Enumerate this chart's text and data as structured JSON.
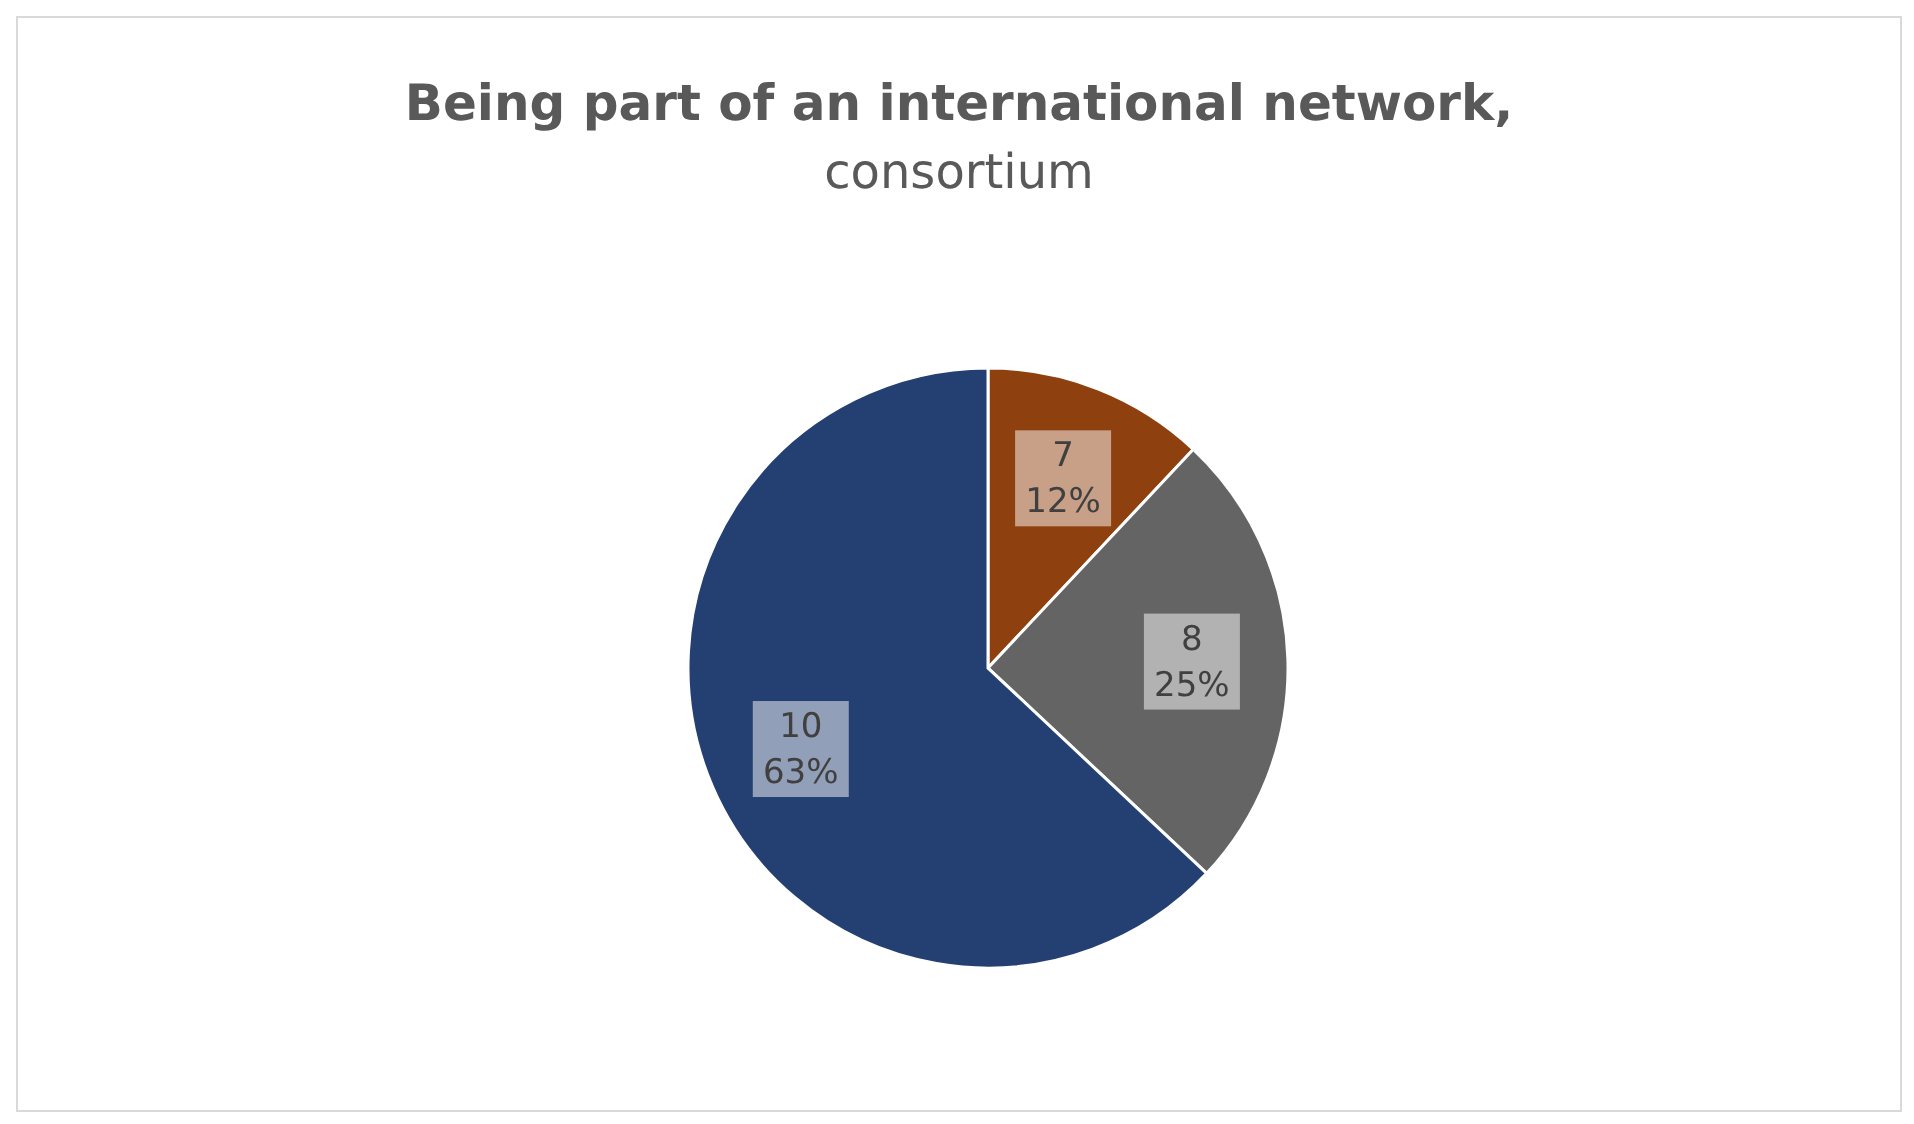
{
  "chart_data": {
    "type": "pie",
    "title": "Being part of an international network,",
    "subtitle": "consortium",
    "categories": [
      "7",
      "8",
      "10"
    ],
    "values": [
      12,
      25,
      63
    ],
    "value_labels": [
      "12%",
      "25%",
      "63%"
    ],
    "colors": [
      "#8e400e",
      "#646464",
      "#243f72"
    ],
    "legend": false
  }
}
